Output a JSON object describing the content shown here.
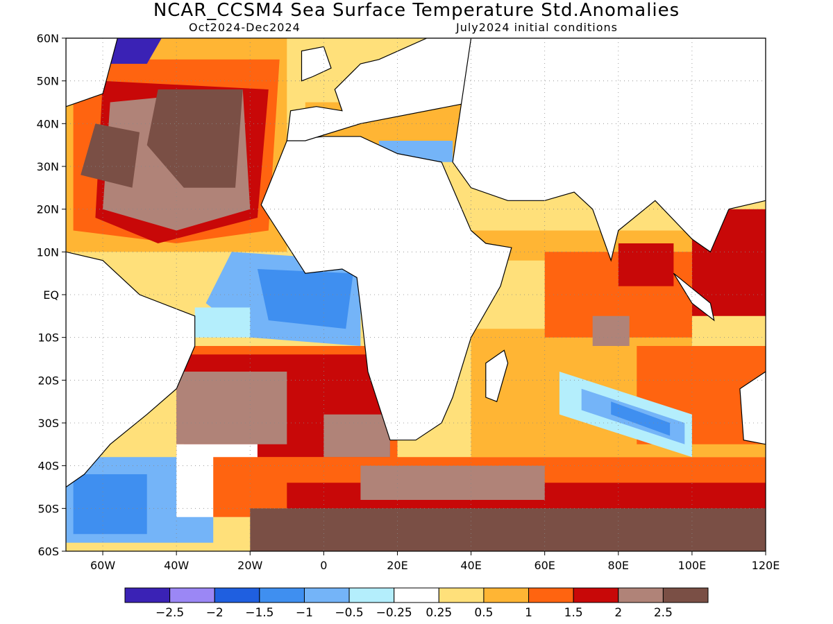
{
  "title": "NCAR_CCSM4 Sea Surface Temperature Std.Anomalies",
  "subtitle_left": "Oct2024-Dec2024",
  "subtitle_right": "July2024 initial conditions",
  "map": {
    "lon_range": [
      -70,
      120
    ],
    "lat_range": [
      -60,
      60
    ],
    "lat_ticks": [
      "60N",
      "50N",
      "40N",
      "30N",
      "20N",
      "10N",
      "EQ",
      "10S",
      "20S",
      "30S",
      "40S",
      "50S",
      "60S"
    ],
    "lon_ticks": [
      "60W",
      "40W",
      "20W",
      "0",
      "20E",
      "40E",
      "60E",
      "80E",
      "100E",
      "120E"
    ],
    "grid": "dotted"
  },
  "colorbar": {
    "colors": [
      "#3a22b5",
      "#9b87f5",
      "#1f5fe0",
      "#3f8ff0",
      "#74b4f8",
      "#b4eefc",
      "#ffffff",
      "#ffe07a",
      "#ffb534",
      "#ff6410",
      "#c80808",
      "#b08378",
      "#7a4f45"
    ],
    "labels": [
      "−2.5",
      "−2",
      "−1.5",
      "−1",
      "−0.5",
      "−0.25",
      "0.25",
      "0.5",
      "1",
      "1.5",
      "2",
      "2.5"
    ]
  },
  "regions": [
    {
      "fill": "#ffb534",
      "lon": [
        -70,
        -10,
        -10,
        -70
      ],
      "lat": [
        60,
        60,
        10,
        10
      ]
    },
    {
      "fill": "#ff6410",
      "lon": [
        -68,
        -12,
        -15,
        -40,
        -68
      ],
      "lat": [
        55,
        55,
        15,
        12,
        15
      ]
    },
    {
      "fill": "#c80808",
      "lon": [
        -60,
        -15,
        -18,
        -45,
        -62
      ],
      "lat": [
        50,
        48,
        18,
        12,
        18
      ]
    },
    {
      "fill": "#b08378",
      "lon": [
        -58,
        -22,
        -20,
        -40,
        -60
      ],
      "lat": [
        45,
        48,
        20,
        15,
        20
      ]
    },
    {
      "fill": "#7a4f45",
      "lon": [
        -45,
        -22,
        -24,
        -38,
        -48
      ],
      "lat": [
        48,
        48,
        25,
        25,
        35
      ]
    },
    {
      "fill": "#7a4f45",
      "lon": [
        -62,
        -50,
        -52,
        -66
      ],
      "lat": [
        40,
        38,
        25,
        28
      ]
    },
    {
      "fill": "#3a22b5",
      "lon": [
        -58,
        -44,
        -48,
        -60
      ],
      "lat": [
        60,
        60,
        54,
        54
      ]
    },
    {
      "fill": "#74b4f8",
      "lon": [
        -25,
        10,
        10,
        -20,
        -32
      ],
      "lat": [
        10,
        8,
        -12,
        -10,
        -2
      ]
    },
    {
      "fill": "#3f8ff0",
      "lon": [
        -18,
        8,
        6,
        -15
      ],
      "lat": [
        6,
        5,
        -8,
        -6
      ]
    },
    {
      "fill": "#b4eefc",
      "lon": [
        -35,
        -20,
        -20,
        -35
      ],
      "lat": [
        -3,
        -3,
        -10,
        -10
      ]
    },
    {
      "fill": "#ff6410",
      "lon": [
        -40,
        20,
        20,
        -40
      ],
      "lat": [
        -12,
        -12,
        -40,
        -40
      ]
    },
    {
      "fill": "#c80808",
      "lon": [
        -38,
        18,
        18,
        -38
      ],
      "lat": [
        -14,
        -14,
        -38,
        -38
      ]
    },
    {
      "fill": "#b08378",
      "lon": [
        -40,
        -10,
        -10,
        -40
      ],
      "lat": [
        -18,
        -18,
        -35,
        -35
      ]
    },
    {
      "fill": "#b08378",
      "lon": [
        0,
        18,
        18,
        0
      ],
      "lat": [
        -28,
        -28,
        -38,
        -38
      ]
    },
    {
      "fill": "#74b4f8",
      "lon": [
        -70,
        -30,
        -30,
        -70
      ],
      "lat": [
        -38,
        -38,
        -58,
        -58
      ]
    },
    {
      "fill": "#3f8ff0",
      "lon": [
        -68,
        -48,
        -48,
        -68
      ],
      "lat": [
        -42,
        -42,
        -56,
        -56
      ]
    },
    {
      "fill": "#ffffff",
      "lon": [
        -40,
        -18,
        -18,
        -40
      ],
      "lat": [
        -35,
        -35,
        -52,
        -52
      ]
    },
    {
      "fill": "#ff6410",
      "lon": [
        -30,
        120,
        120,
        -30
      ],
      "lat": [
        -38,
        -38,
        -52,
        -52
      ]
    },
    {
      "fill": "#c80808",
      "lon": [
        -10,
        120,
        120,
        -10
      ],
      "lat": [
        -44,
        -44,
        -55,
        -55
      ]
    },
    {
      "fill": "#7a4f45",
      "lon": [
        -20,
        120,
        120,
        -20
      ],
      "lat": [
        -50,
        -50,
        -60,
        -60
      ]
    },
    {
      "fill": "#b08378",
      "lon": [
        10,
        60,
        60,
        10
      ],
      "lat": [
        -40,
        -40,
        -48,
        -48
      ]
    },
    {
      "fill": "#ffb534",
      "lon": [
        40,
        100,
        100,
        40
      ],
      "lat": [
        15,
        15,
        -15,
        -15
      ]
    },
    {
      "fill": "#ffe07a",
      "lon": [
        40,
        70,
        70,
        40
      ],
      "lat": [
        8,
        8,
        -8,
        -8
      ]
    },
    {
      "fill": "#ff6410",
      "lon": [
        60,
        100,
        100,
        60
      ],
      "lat": [
        10,
        10,
        -10,
        -10
      ]
    },
    {
      "fill": "#c80808",
      "lon": [
        80,
        95,
        95,
        80
      ],
      "lat": [
        12,
        12,
        2,
        2
      ]
    },
    {
      "fill": "#b08378",
      "lon": [
        73,
        83,
        83,
        73
      ],
      "lat": [
        -5,
        -5,
        -12,
        -12
      ]
    },
    {
      "fill": "#ffb534",
      "lon": [
        40,
        120,
        120,
        40
      ],
      "lat": [
        -15,
        -15,
        -38,
        -38
      ]
    },
    {
      "fill": "#ff6410",
      "lon": [
        85,
        120,
        120,
        85
      ],
      "lat": [
        -12,
        -12,
        -35,
        -35
      ]
    },
    {
      "fill": "#b4eefc",
      "lon": [
        64,
        100,
        100,
        64
      ],
      "lat": [
        -18,
        -28,
        -38,
        -28
      ]
    },
    {
      "fill": "#74b4f8",
      "lon": [
        70,
        98,
        98,
        70
      ],
      "lat": [
        -22,
        -30,
        -35,
        -27
      ]
    },
    {
      "fill": "#3f8ff0",
      "lon": [
        78,
        94,
        94,
        78
      ],
      "lat": [
        -25,
        -30,
        -33,
        -28
      ]
    },
    {
      "fill": "#c80808",
      "lon": [
        100,
        120,
        120,
        100
      ],
      "lat": [
        20,
        20,
        -5,
        -5
      ]
    },
    {
      "fill": "#ffb534",
      "lon": [
        -5,
        40,
        40,
        -5
      ],
      "lat": [
        45,
        45,
        32,
        32
      ]
    },
    {
      "fill": "#74b4f8",
      "lon": [
        15,
        35,
        35,
        15
      ],
      "lat": [
        36,
        36,
        31,
        31
      ]
    }
  ],
  "land": [
    {
      "name": "africa",
      "lon": [
        -17,
        -10,
        0,
        10,
        20,
        32,
        40,
        44,
        51,
        48,
        40,
        35,
        32,
        25,
        18,
        12,
        10,
        9,
        5,
        -5,
        -17
      ],
      "lat": [
        21,
        36,
        37,
        37,
        33,
        31,
        15,
        12,
        11,
        2,
        -10,
        -24,
        -30,
        -34,
        -34,
        -18,
        -3,
        4,
        6,
        5,
        21
      ]
    },
    {
      "name": "europe",
      "lon": [
        -10,
        -9,
        -2,
        5,
        3,
        10,
        15,
        28,
        40,
        40,
        10,
        -5,
        -10
      ],
      "lat": [
        36,
        43,
        44,
        43,
        48,
        54,
        55,
        60,
        60,
        45,
        40,
        36,
        36
      ]
    },
    {
      "name": "britain",
      "lon": [
        -6,
        -3,
        2,
        0,
        -6
      ],
      "lat": [
        50,
        51,
        53,
        58,
        57
      ]
    },
    {
      "name": "arabia-asia",
      "lon": [
        35,
        40,
        50,
        60,
        68,
        73,
        78,
        80,
        90,
        100,
        105,
        110,
        120,
        120,
        40,
        35
      ],
      "lat": [
        31,
        25,
        22,
        22,
        24,
        20,
        8,
        15,
        22,
        13,
        10,
        20,
        22,
        60,
        60,
        31
      ]
    },
    {
      "name": "south-america",
      "lon": [
        -70,
        -60,
        -50,
        -35,
        -35,
        -40,
        -48,
        -58,
        -65,
        -70
      ],
      "lat": [
        10,
        8,
        0,
        -5,
        -12,
        -22,
        -28,
        -35,
        -42,
        -45
      ]
    },
    {
      "name": "madagascar",
      "lon": [
        44,
        49,
        50,
        47,
        44
      ],
      "lat": [
        -16,
        -13,
        -16,
        -25,
        -24
      ]
    },
    {
      "name": "australia",
      "lon": [
        113,
        120,
        120,
        114
      ],
      "lat": [
        -22,
        -18,
        -35,
        -34
      ]
    },
    {
      "name": "north-america",
      "lon": [
        -70,
        -56,
        -60,
        -70
      ],
      "lat": [
        60,
        60,
        47,
        44
      ]
    },
    {
      "name": "sumatra",
      "lon": [
        95,
        105,
        106,
        100,
        95
      ],
      "lat": [
        5,
        -2,
        -6,
        -2,
        5
      ]
    }
  ]
}
